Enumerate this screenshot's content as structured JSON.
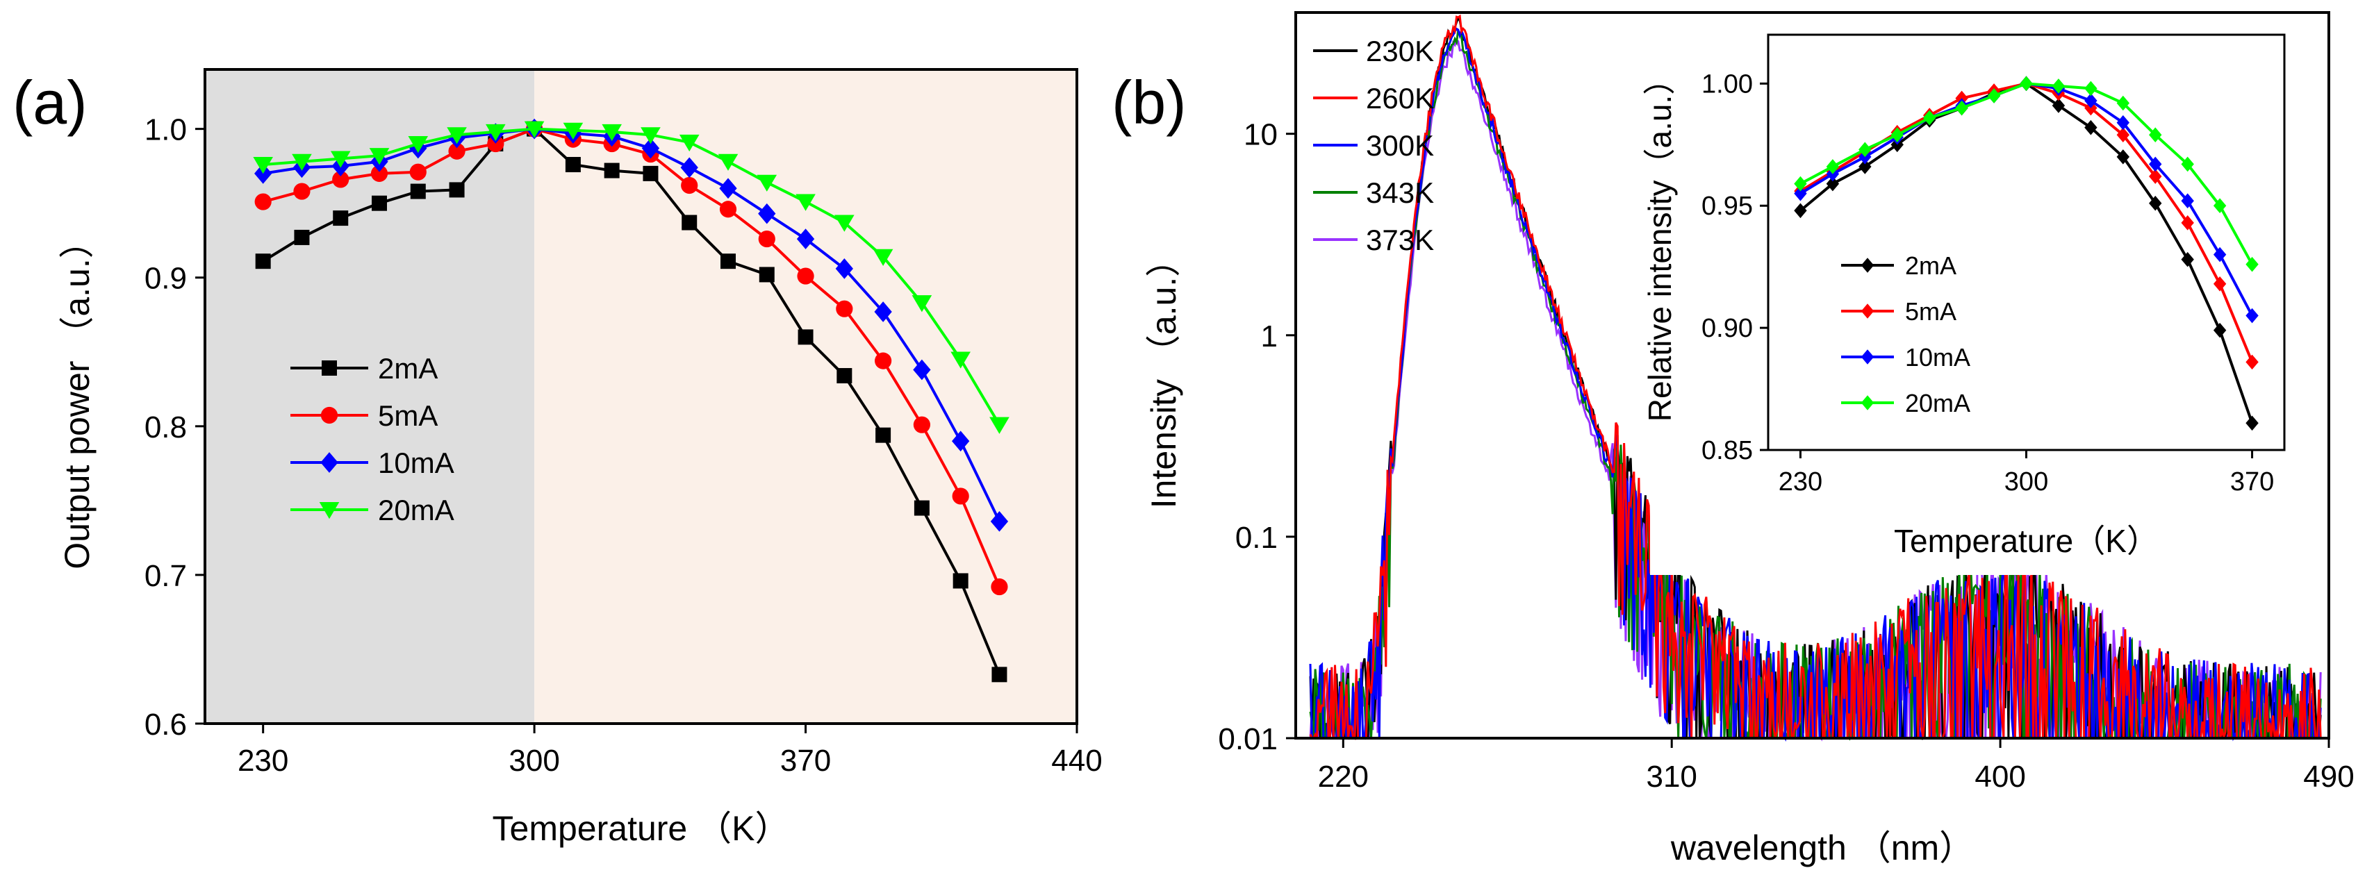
{
  "panels": {
    "a_label": "(a)",
    "b_label": "(b)"
  },
  "chart_data": [
    {
      "id": "a",
      "type": "line",
      "xlabel": "Temperature （K）",
      "ylabel": "Output power （a.u.）",
      "xlim": [
        215,
        440
      ],
      "ylim": [
        0.6,
        1.04
      ],
      "xticks": [
        230,
        300,
        370,
        440
      ],
      "xtick_labels": [
        "230",
        "300",
        "370",
        "440"
      ],
      "yticks": [
        0.6,
        0.7,
        0.8,
        0.9,
        1.0
      ],
      "ytick_labels": [
        "0.6",
        "0.7",
        "0.8",
        "0.9",
        "1.0"
      ],
      "shaded_regions": [
        {
          "from": 215,
          "to": 300,
          "color": "#dedede"
        },
        {
          "from": 300,
          "to": 440,
          "color": "#fbf0e8"
        }
      ],
      "x": [
        230,
        240,
        250,
        260,
        270,
        280,
        290,
        300,
        310,
        320,
        330,
        340,
        350,
        360,
        370,
        380,
        390,
        400,
        410,
        420
      ],
      "series": [
        {
          "name": "2mA",
          "color": "#000000",
          "marker": "square",
          "values": [
            0.911,
            0.927,
            0.94,
            0.95,
            0.958,
            0.959,
            0.99,
            1.0,
            0.976,
            0.972,
            0.97,
            0.937,
            0.911,
            0.902,
            0.86,
            0.834,
            0.794,
            0.745,
            0.696,
            0.633
          ]
        },
        {
          "name": "5mA",
          "color": "#ff0000",
          "marker": "circle",
          "values": [
            0.951,
            0.958,
            0.966,
            0.97,
            0.971,
            0.985,
            0.99,
            1.0,
            0.993,
            0.99,
            0.983,
            0.962,
            0.946,
            0.926,
            0.901,
            0.879,
            0.844,
            0.801,
            0.753,
            0.692
          ]
        },
        {
          "name": "10mA",
          "color": "#0000ff",
          "marker": "diamond",
          "values": [
            0.97,
            0.974,
            0.975,
            0.978,
            0.987,
            0.994,
            0.997,
            1.0,
            0.997,
            0.995,
            0.987,
            0.974,
            0.96,
            0.943,
            0.926,
            0.906,
            0.877,
            0.838,
            0.79,
            0.736
          ]
        },
        {
          "name": "20mA",
          "color": "#00ff00",
          "marker": "triangle-down",
          "values": [
            0.976,
            0.978,
            0.98,
            0.982,
            0.99,
            0.996,
            0.998,
            1.0,
            0.999,
            0.998,
            0.996,
            0.991,
            0.978,
            0.964,
            0.951,
            0.937,
            0.914,
            0.883,
            0.845,
            0.801
          ]
        }
      ]
    },
    {
      "id": "b",
      "type": "line",
      "xlabel": "wavelength （nm）",
      "ylabel": "Intensity （a.u.）",
      "xscale": "linear",
      "yscale": "log",
      "xlim": [
        207,
        490
      ],
      "ylim": [
        0.01,
        40
      ],
      "xticks": [
        220,
        310,
        400,
        490
      ],
      "xtick_labels": [
        "220",
        "310",
        "400",
        "490"
      ],
      "yticks": [
        0.01,
        0.1,
        1,
        10
      ],
      "ytick_labels": [
        "0.01",
        "0.1",
        "1",
        "10"
      ],
      "peak_wavelength_nm": 252,
      "secondary_band_nm": 400,
      "series": [
        {
          "name": "230K",
          "color": "#000000",
          "peak": 35
        },
        {
          "name": "260K",
          "color": "#ff0000",
          "peak": 36
        },
        {
          "name": "300K",
          "color": "#0000ff",
          "peak": 33
        },
        {
          "name": "343K",
          "color": "#008000",
          "peak": 31
        },
        {
          "name": "373K",
          "color": "#9933ff",
          "peak": 28
        }
      ],
      "inset": {
        "type": "line",
        "xlabel": "Temperature（K）",
        "ylabel": "Relative intensity（a.u.）",
        "xlim": [
          220,
          380
        ],
        "ylim": [
          0.85,
          1.02
        ],
        "xticks": [
          230,
          300,
          370
        ],
        "xtick_labels": [
          "230",
          "300",
          "370"
        ],
        "yticks": [
          0.85,
          0.9,
          0.95,
          1.0
        ],
        "ytick_labels": [
          "0.85",
          "0.90",
          "0.95",
          "1.00"
        ],
        "x": [
          230,
          240,
          250,
          260,
          270,
          280,
          290,
          300,
          310,
          320,
          330,
          340,
          350,
          360,
          370
        ],
        "series": [
          {
            "name": "2mA",
            "color": "#000000",
            "values": [
              0.948,
              0.959,
              0.966,
              0.975,
              0.985,
              0.99,
              0.996,
              1.0,
              0.991,
              0.982,
              0.97,
              0.951,
              0.928,
              0.899,
              0.861
            ]
          },
          {
            "name": "5mA",
            "color": "#ff0000",
            "values": [
              0.956,
              0.964,
              0.972,
              0.98,
              0.987,
              0.994,
              0.997,
              1.0,
              0.996,
              0.99,
              0.979,
              0.962,
              0.943,
              0.918,
              0.886
            ]
          },
          {
            "name": "10mA",
            "color": "#0000ff",
            "values": [
              0.955,
              0.963,
              0.97,
              0.978,
              0.986,
              0.991,
              0.995,
              1.0,
              0.998,
              0.993,
              0.984,
              0.967,
              0.952,
              0.93,
              0.905
            ]
          },
          {
            "name": "20mA",
            "color": "#00ff00",
            "values": [
              0.959,
              0.966,
              0.973,
              0.979,
              0.986,
              0.99,
              0.995,
              1.0,
              0.999,
              0.998,
              0.992,
              0.979,
              0.967,
              0.95,
              0.926
            ]
          }
        ]
      }
    }
  ]
}
